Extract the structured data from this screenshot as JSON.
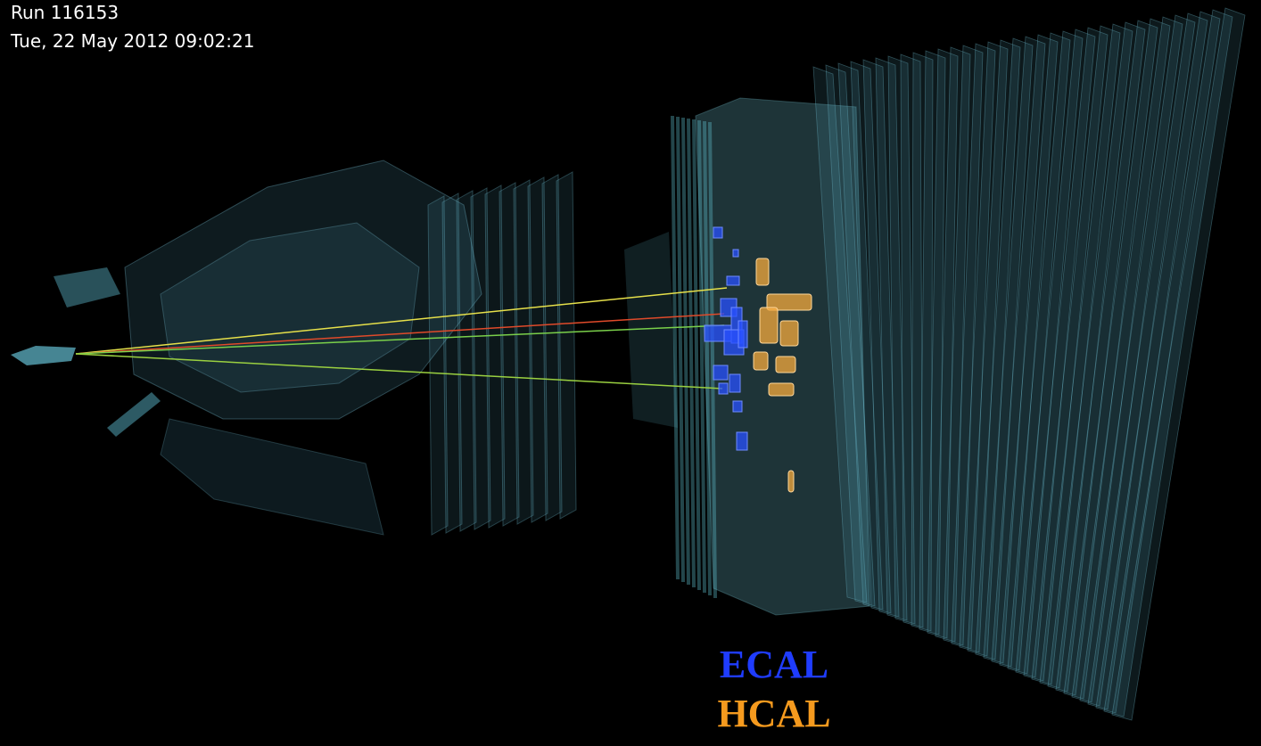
{
  "header": {
    "run": "Run 116153",
    "timestamp": "Tue, 22 May 2012 09:02:21"
  },
  "legend": {
    "ecal": "ECAL",
    "hcal": "HCAL"
  }
}
